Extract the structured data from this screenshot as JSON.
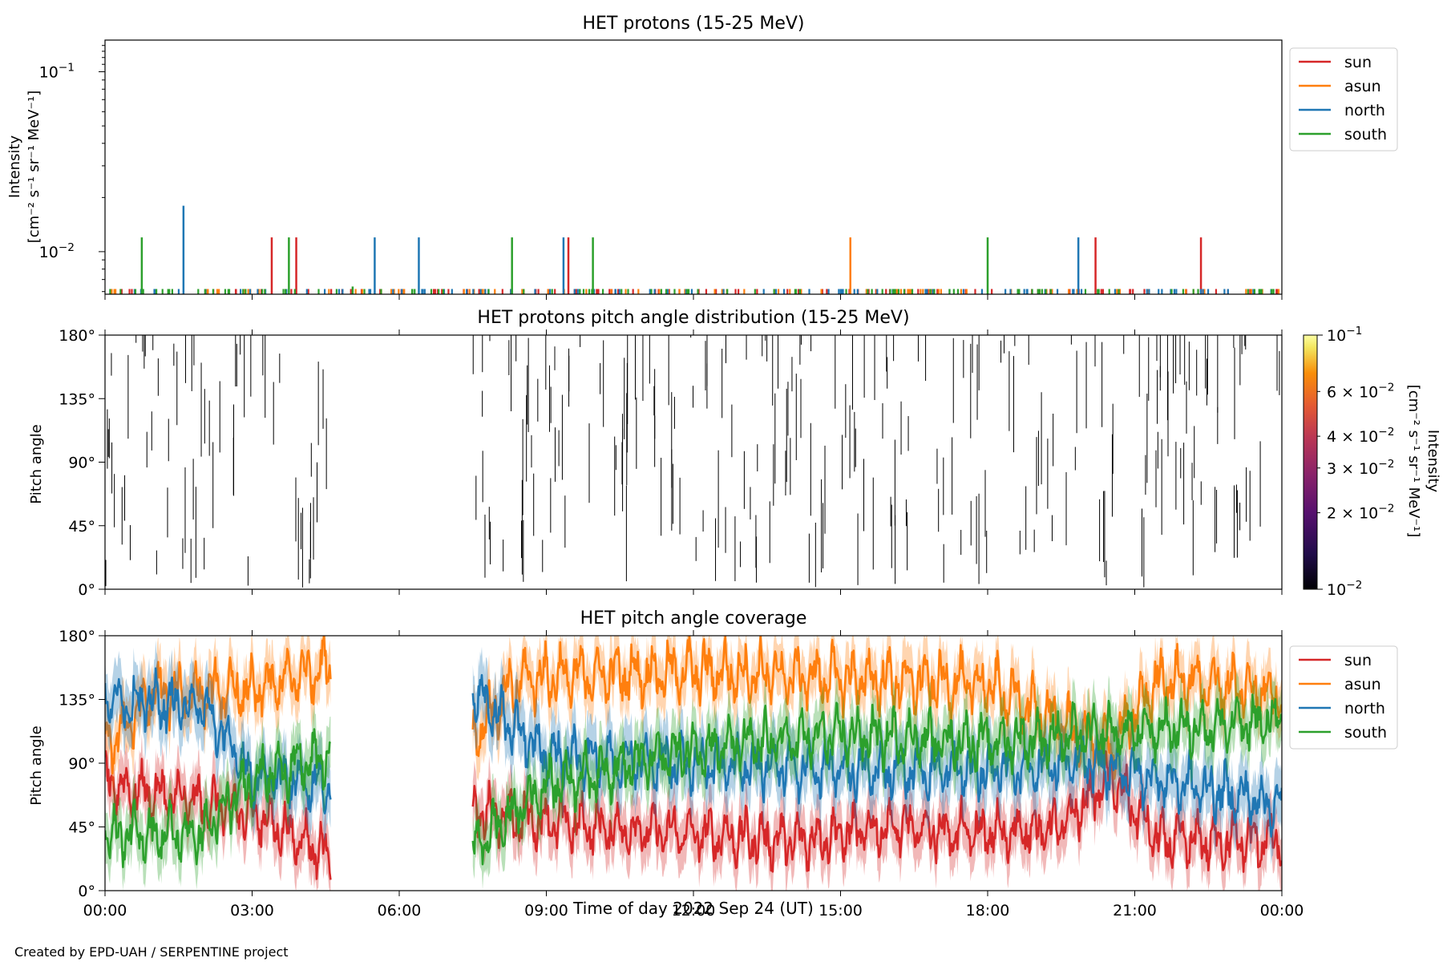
{
  "footer": "Created by EPD-UAH / SERPENTINE project",
  "colors": {
    "sun": "#d62728",
    "asun": "#ff7f0e",
    "north": "#1f77b4",
    "south": "#2ca02c",
    "axes": "#000000"
  },
  "chart_data": [
    {
      "id": "intensity",
      "type": "line",
      "title": "HET protons (15-25 MeV)",
      "ylabel_lines": [
        "Intensity",
        "[cm⁻² s⁻¹ sr⁻¹ MeV⁻¹]"
      ],
      "yscale": "log",
      "ylim": [
        0.0058,
        0.15
      ],
      "yticks": [
        {
          "v": 0.01,
          "base": "10",
          "exp": "−2"
        },
        {
          "v": 0.1,
          "base": "10",
          "exp": "−1"
        }
      ],
      "xlim_hours": [
        0,
        24
      ],
      "legend": "outside-right",
      "baseline": 0.0058,
      "series": [
        {
          "name": "sun",
          "color": "#d62728",
          "spikes": [
            [
              3.4,
              0.012
            ],
            [
              3.9,
              0.012
            ],
            [
              9.45,
              0.012
            ],
            [
              20.2,
              0.012
            ],
            [
              22.35,
              0.012
            ]
          ]
        },
        {
          "name": "asun",
          "color": "#ff7f0e",
          "spikes": [
            [
              15.2,
              0.012
            ]
          ]
        },
        {
          "name": "north",
          "color": "#1f77b4",
          "spikes": [
            [
              1.6,
              0.018
            ],
            [
              5.5,
              0.012
            ],
            [
              6.4,
              0.012
            ],
            [
              9.35,
              0.012
            ],
            [
              19.85,
              0.012
            ]
          ]
        },
        {
          "name": "south",
          "color": "#2ca02c",
          "spikes": [
            [
              0.75,
              0.012
            ],
            [
              3.75,
              0.012
            ],
            [
              8.3,
              0.012
            ],
            [
              9.95,
              0.012
            ],
            [
              18.0,
              0.012
            ],
            [
              5.05,
              0.0064
            ]
          ]
        }
      ]
    },
    {
      "id": "pad",
      "type": "heatmap",
      "title": "HET protons pitch angle distribution (15-25 MeV)",
      "ylabel": "Pitch angle",
      "ylim_deg": [
        0,
        180
      ],
      "yticks": [
        "0°",
        "45°",
        "90°",
        "135°",
        "180°"
      ],
      "xlim_hours": [
        0,
        24
      ],
      "data_gap_hours": [
        4.6,
        7.5
      ],
      "colorbar": {
        "label_lines": [
          "Intensity",
          "[cm⁻² s⁻¹ sr⁻¹ MeV⁻¹]"
        ],
        "scale": "log",
        "range": [
          0.01,
          0.1
        ],
        "ticks": [
          {
            "v": 0.01,
            "text": "10",
            "exp": "−2",
            "major": true
          },
          {
            "v": 0.02,
            "text": "2 × 10",
            "exp": "−2",
            "major": false
          },
          {
            "v": 0.03,
            "text": "3 × 10",
            "exp": "−2",
            "major": false
          },
          {
            "v": 0.04,
            "text": "4 × 10",
            "exp": "−2",
            "major": false
          },
          {
            "v": 0.06,
            "text": "6 × 10",
            "exp": "−2",
            "major": false
          },
          {
            "v": 0.1,
            "text": "10",
            "exp": "−1",
            "major": true
          }
        ],
        "colormap": "inferno"
      }
    },
    {
      "id": "coverage",
      "type": "area",
      "title": "HET pitch angle coverage",
      "ylabel": "Pitch angle",
      "xlabel": "Time of day 2022 Sep 24 (UT)",
      "ylim_deg": [
        0,
        180
      ],
      "yticks": [
        "0°",
        "45°",
        "90°",
        "135°",
        "180°"
      ],
      "xlim_hours": [
        0,
        24
      ],
      "xticks": [
        "00:00",
        "03:00",
        "06:00",
        "09:00",
        "12:00",
        "15:00",
        "18:00",
        "21:00",
        "00:00"
      ],
      "data_gap_hours": [
        4.6,
        7.5
      ],
      "legend": "outside-right",
      "series": [
        {
          "name": "sun",
          "color": "#d62728",
          "mean_deg": [
            [
              0,
              75
            ],
            [
              3,
              55
            ],
            [
              4.6,
              25
            ],
            [
              7.5,
              55
            ],
            [
              10,
              45
            ],
            [
              14,
              35
            ],
            [
              16,
              45
            ],
            [
              18,
              40
            ],
            [
              19.5,
              45
            ],
            [
              20.5,
              80
            ],
            [
              21.5,
              35
            ],
            [
              24,
              35
            ]
          ],
          "amp": 18,
          "band": 18
        },
        {
          "name": "asun",
          "color": "#ff7f0e",
          "mean_deg": [
            [
              0,
              100
            ],
            [
              1,
              140
            ],
            [
              3,
              140
            ],
            [
              4.6,
              160
            ],
            [
              7.5,
              110
            ],
            [
              8.5,
              150
            ],
            [
              12,
              155
            ],
            [
              15,
              150
            ],
            [
              18,
              145
            ],
            [
              20.5,
              100
            ],
            [
              21.5,
              150
            ],
            [
              24,
              140
            ]
          ],
          "amp": 20,
          "band": 18
        },
        {
          "name": "north",
          "color": "#1f77b4",
          "mean_deg": [
            [
              0,
              135
            ],
            [
              2,
              130
            ],
            [
              3,
              80
            ],
            [
              4.6,
              75
            ],
            [
              7.5,
              140
            ],
            [
              9,
              95
            ],
            [
              12,
              90
            ],
            [
              15,
              85
            ],
            [
              18,
              85
            ],
            [
              20,
              90
            ],
            [
              22,
              75
            ],
            [
              24,
              60
            ]
          ],
          "amp": 18,
          "band": 20
        },
        {
          "name": "south",
          "color": "#2ca02c",
          "mean_deg": [
            [
              0,
              40
            ],
            [
              2,
              40
            ],
            [
              3,
              80
            ],
            [
              4.6,
              95
            ],
            [
              7.5,
              30
            ],
            [
              9,
              75
            ],
            [
              12,
              100
            ],
            [
              15,
              110
            ],
            [
              18,
              105
            ],
            [
              20,
              110
            ],
            [
              22,
              115
            ],
            [
              24,
              120
            ]
          ],
          "amp": 18,
          "band": 18
        }
      ]
    }
  ]
}
